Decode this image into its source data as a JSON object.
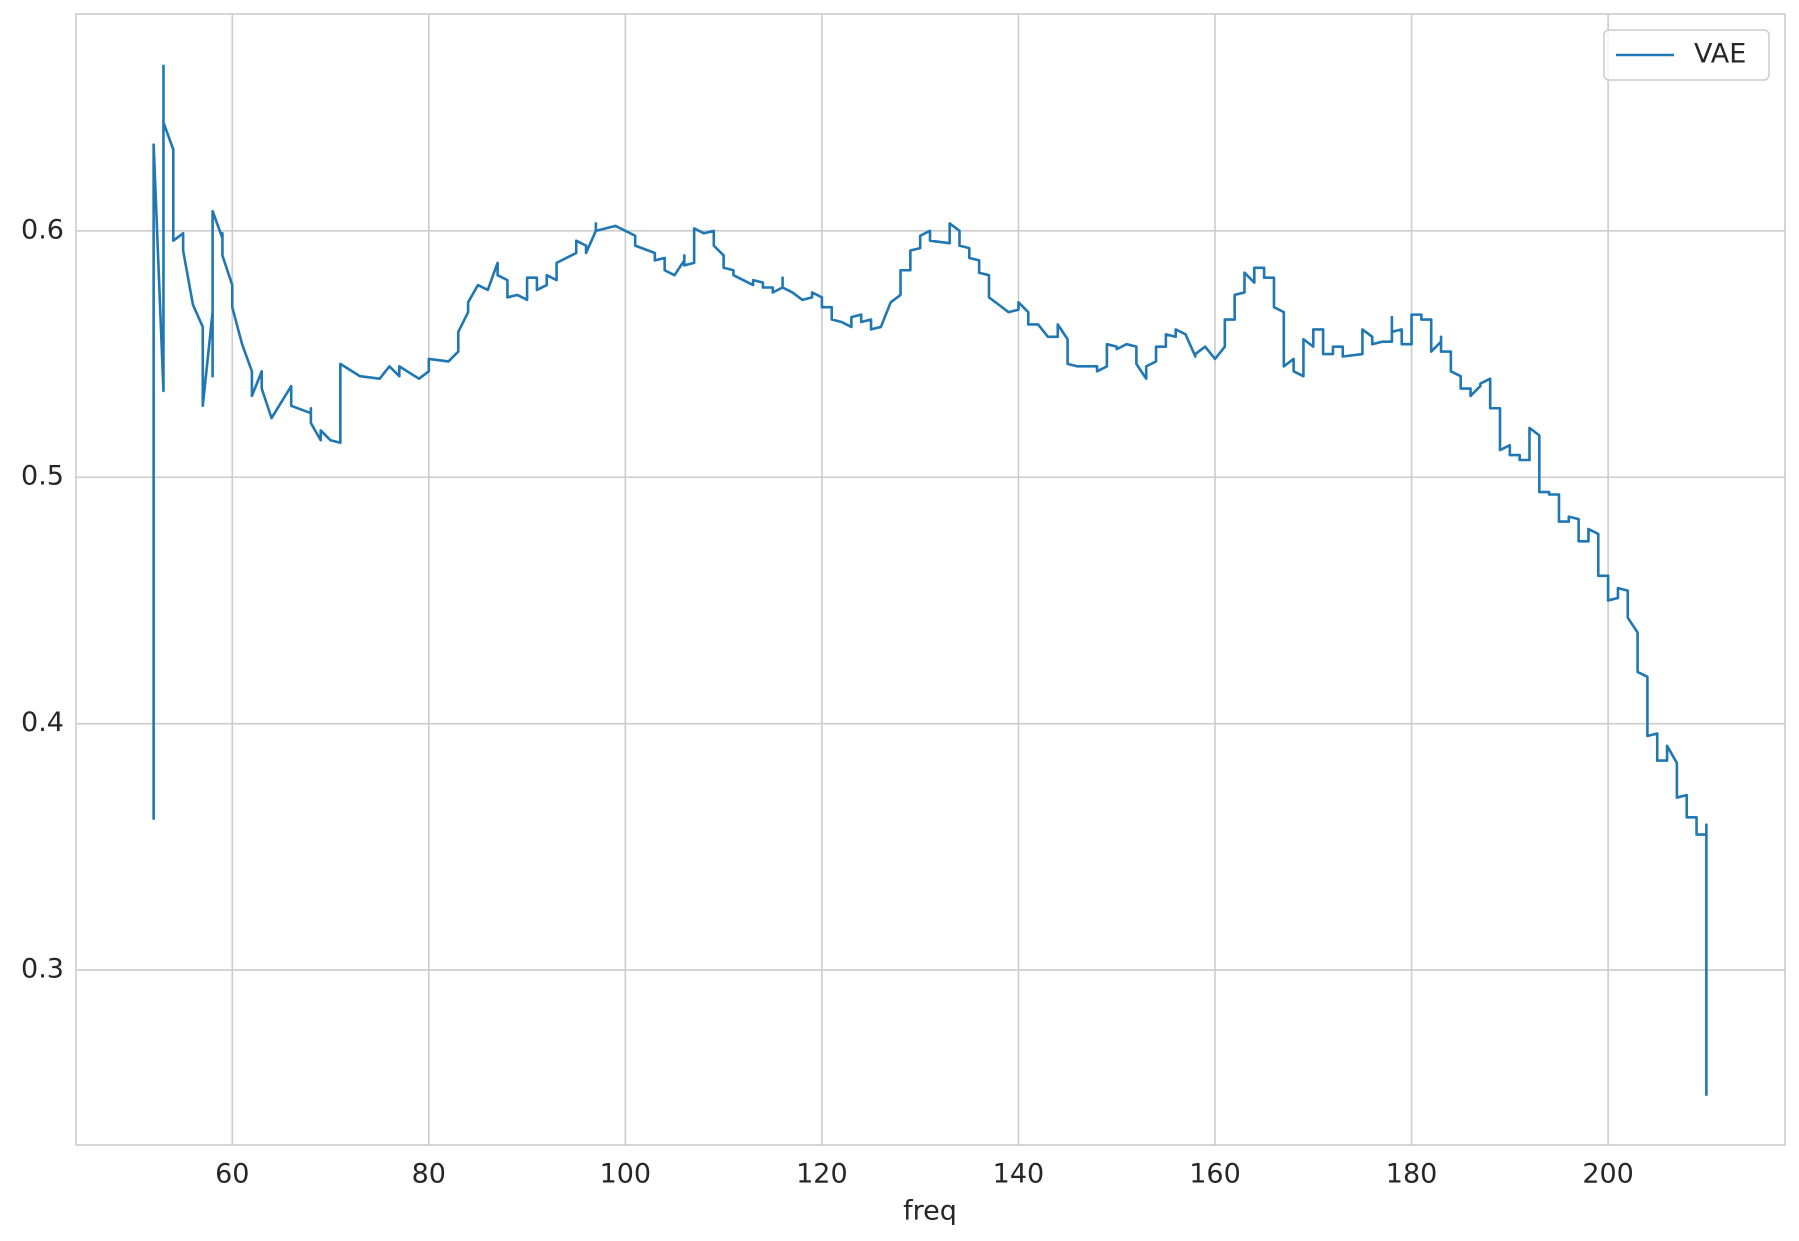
{
  "chart_data": {
    "type": "line",
    "xlabel": "freq",
    "x": [
      52,
      52,
      53,
      53,
      53,
      54,
      54,
      55,
      55,
      56,
      57,
      57,
      58,
      58,
      58,
      59,
      59,
      59,
      60,
      60,
      61,
      62,
      62,
      63,
      63,
      64,
      66,
      66,
      68,
      68,
      68,
      69,
      69,
      70,
      71,
      71,
      73,
      75,
      76,
      77,
      77,
      79,
      80,
      80,
      82,
      83,
      83,
      84,
      84,
      85,
      86,
      87,
      87,
      88,
      88,
      89,
      90,
      90,
      91,
      91,
      92,
      92,
      93,
      93,
      94,
      95,
      95,
      96,
      96,
      97,
      97,
      97,
      99,
      100,
      101,
      101,
      103,
      103,
      104,
      104,
      105,
      106,
      106,
      106,
      107,
      107,
      108,
      109,
      109,
      110,
      110,
      111,
      111,
      113,
      113,
      114,
      114,
      115,
      115,
      116,
      116,
      116,
      117,
      118,
      119,
      119,
      120,
      120,
      121,
      121,
      122,
      123,
      123,
      124,
      124,
      125,
      125,
      126,
      127,
      128,
      128,
      129,
      129,
      130,
      130,
      131,
      131,
      133,
      133,
      134,
      134,
      135,
      135,
      136,
      136,
      137,
      137,
      138,
      139,
      140,
      140,
      141,
      141,
      142,
      143,
      144,
      144,
      145,
      145,
      145,
      146,
      148,
      148,
      149,
      149,
      150,
      150,
      151,
      152,
      152,
      153,
      153,
      154,
      154,
      155,
      155,
      156,
      156,
      157,
      158,
      158,
      159,
      160,
      161,
      161,
      162,
      162,
      163,
      163,
      164,
      164,
      165,
      165,
      166,
      166,
      167,
      167,
      168,
      168,
      169,
      169,
      170,
      170,
      171,
      171,
      172,
      172,
      173,
      173,
      175,
      175,
      176,
      176,
      177,
      178,
      178,
      178,
      179,
      179,
      180,
      180,
      181,
      181,
      182,
      182,
      183,
      183,
      183,
      184,
      184,
      185,
      185,
      186,
      186,
      187,
      187,
      188,
      188,
      189,
      189,
      190,
      190,
      191,
      191,
      192,
      192,
      193,
      193,
      194,
      194,
      195,
      195,
      196,
      196,
      197,
      197,
      198,
      198,
      199,
      199,
      200,
      200,
      201,
      201,
      202,
      202,
      203,
      203,
      204,
      204,
      205,
      205,
      206,
      206,
      207,
      207,
      208,
      208,
      209,
      209,
      210,
      210,
      210
    ],
    "series": [
      {
        "name": "VAE",
        "color": "#1f77b4",
        "values": [
          0.361,
          0.635,
          0.535,
          0.667,
          0.644,
          0.633,
          0.596,
          0.599,
          0.592,
          0.57,
          0.561,
          0.529,
          0.567,
          0.541,
          0.608,
          0.597,
          0.599,
          0.59,
          0.578,
          0.569,
          0.554,
          0.543,
          0.533,
          0.543,
          0.536,
          0.524,
          0.537,
          0.529,
          0.526,
          0.528,
          0.522,
          0.515,
          0.519,
          0.515,
          0.514,
          0.546,
          0.541,
          0.54,
          0.545,
          0.541,
          0.545,
          0.54,
          0.543,
          0.548,
          0.547,
          0.551,
          0.559,
          0.567,
          0.571,
          0.578,
          0.576,
          0.587,
          0.582,
          0.58,
          0.573,
          0.574,
          0.572,
          0.581,
          0.581,
          0.576,
          0.578,
          0.582,
          0.58,
          0.587,
          0.589,
          0.591,
          0.596,
          0.594,
          0.591,
          0.6,
          0.603,
          0.6,
          0.602,
          0.6,
          0.598,
          0.594,
          0.591,
          0.588,
          0.589,
          0.584,
          0.582,
          0.588,
          0.59,
          0.586,
          0.587,
          0.601,
          0.599,
          0.6,
          0.594,
          0.59,
          0.585,
          0.584,
          0.582,
          0.578,
          0.58,
          0.579,
          0.577,
          0.577,
          0.575,
          0.577,
          0.581,
          0.577,
          0.575,
          0.572,
          0.573,
          0.575,
          0.573,
          0.569,
          0.569,
          0.564,
          0.563,
          0.561,
          0.565,
          0.566,
          0.563,
          0.564,
          0.56,
          0.561,
          0.571,
          0.574,
          0.584,
          0.584,
          0.592,
          0.593,
          0.598,
          0.6,
          0.596,
          0.595,
          0.603,
          0.6,
          0.594,
          0.593,
          0.589,
          0.588,
          0.583,
          0.582,
          0.573,
          0.57,
          0.567,
          0.568,
          0.571,
          0.567,
          0.562,
          0.562,
          0.557,
          0.557,
          0.562,
          0.556,
          0.553,
          0.546,
          0.545,
          0.545,
          0.543,
          0.545,
          0.554,
          0.553,
          0.552,
          0.554,
          0.553,
          0.546,
          0.54,
          0.545,
          0.547,
          0.553,
          0.553,
          0.558,
          0.557,
          0.56,
          0.558,
          0.549,
          0.55,
          0.553,
          0.548,
          0.553,
          0.564,
          0.564,
          0.574,
          0.575,
          0.583,
          0.579,
          0.585,
          0.585,
          0.581,
          0.581,
          0.569,
          0.567,
          0.545,
          0.548,
          0.543,
          0.541,
          0.556,
          0.553,
          0.56,
          0.56,
          0.55,
          0.55,
          0.553,
          0.553,
          0.549,
          0.55,
          0.56,
          0.557,
          0.554,
          0.555,
          0.555,
          0.565,
          0.559,
          0.56,
          0.554,
          0.554,
          0.566,
          0.566,
          0.564,
          0.564,
          0.551,
          0.555,
          0.557,
          0.551,
          0.551,
          0.543,
          0.541,
          0.536,
          0.536,
          0.533,
          0.537,
          0.538,
          0.54,
          0.528,
          0.528,
          0.511,
          0.513,
          0.509,
          0.509,
          0.507,
          0.507,
          0.52,
          0.517,
          0.494,
          0.494,
          0.493,
          0.493,
          0.482,
          0.482,
          0.484,
          0.483,
          0.474,
          0.474,
          0.479,
          0.477,
          0.46,
          0.46,
          0.45,
          0.451,
          0.455,
          0.454,
          0.443,
          0.437,
          0.421,
          0.419,
          0.395,
          0.396,
          0.385,
          0.385,
          0.391,
          0.384,
          0.37,
          0.371,
          0.362,
          0.362,
          0.355,
          0.355,
          0.359,
          0.249
        ]
      }
    ],
    "xlim": [
      44.1,
      218.0
    ],
    "xticks": [
      60,
      80,
      100,
      120,
      140,
      160,
      180,
      200
    ],
    "ylim": [
      0.229,
      0.688
    ],
    "yticks": [
      0.3,
      0.4,
      0.5,
      0.6
    ],
    "grid": true,
    "legend": "upper right"
  }
}
